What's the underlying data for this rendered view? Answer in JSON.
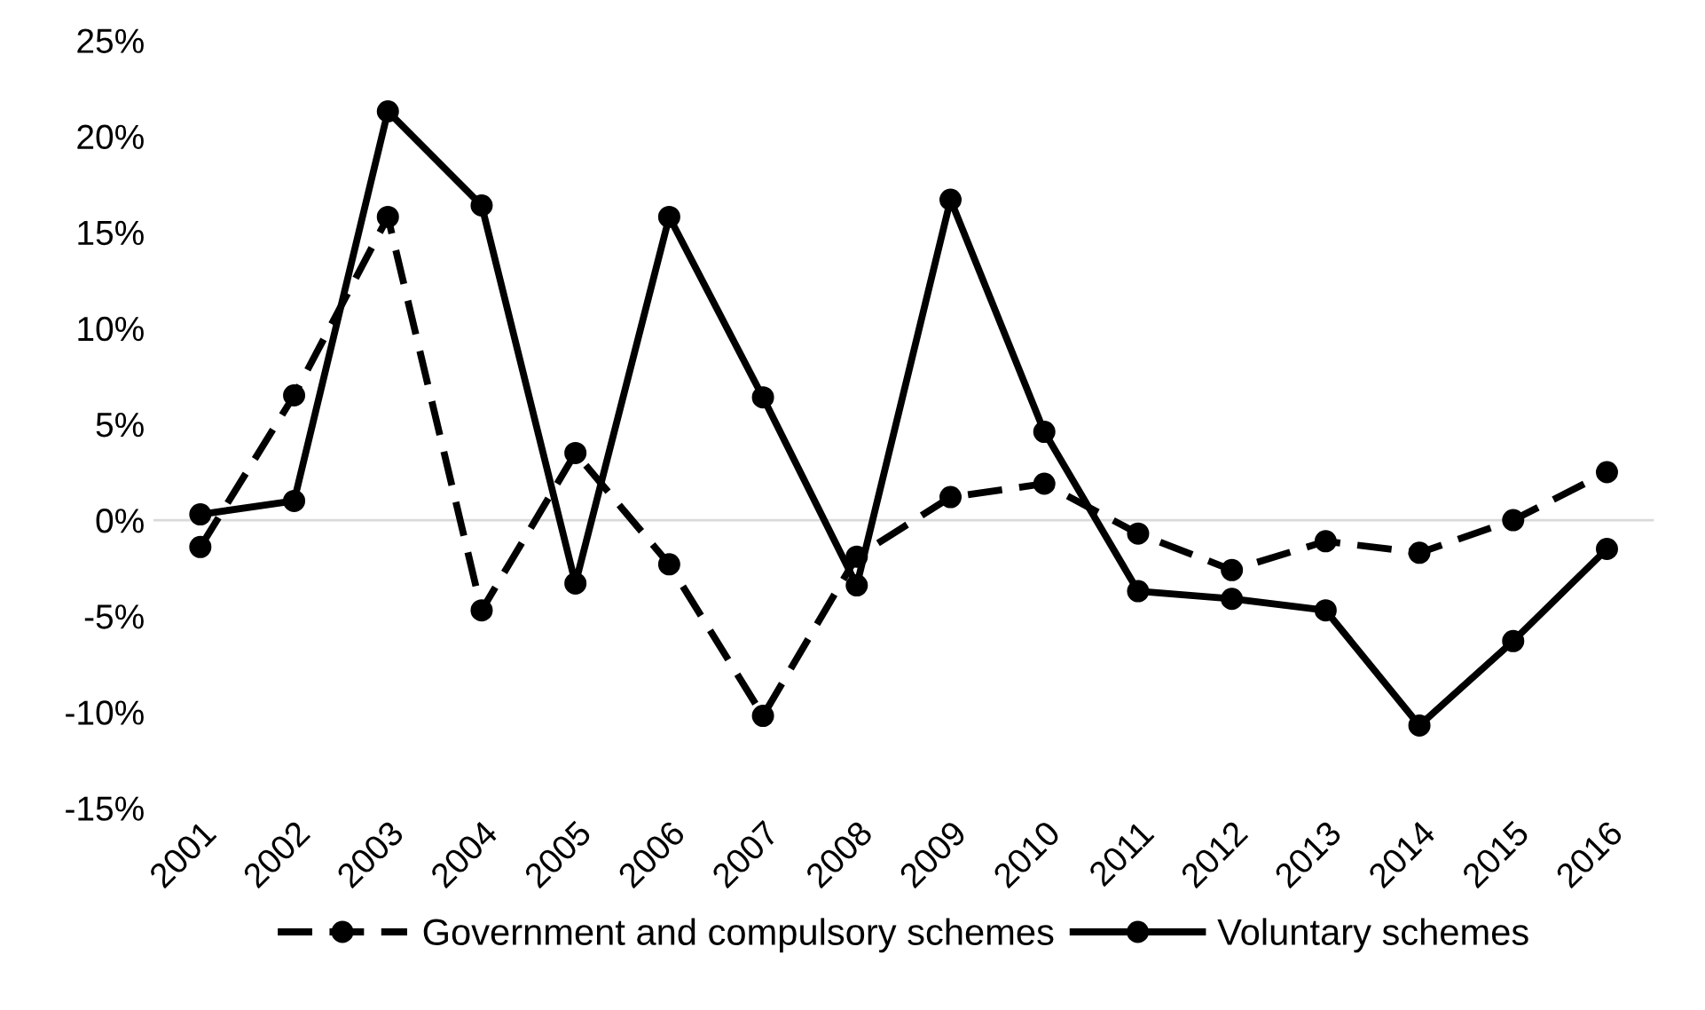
{
  "chart_data": {
    "type": "line",
    "categories": [
      "2001",
      "2002",
      "2003",
      "2004",
      "2005",
      "2006",
      "2007",
      "2008",
      "2009",
      "2010",
      "2011",
      "2012",
      "2013",
      "2014",
      "2015",
      "2016"
    ],
    "series": [
      {
        "name": "Government and compulsory schemes",
        "color": "#000000",
        "line_style": "dashed",
        "values": [
          -1.4,
          6.5,
          15.8,
          -4.7,
          3.5,
          -2.3,
          -10.2,
          -1.9,
          1.2,
          1.9,
          -0.7,
          -2.6,
          -1.1,
          -1.7,
          0.0,
          2.5
        ]
      },
      {
        "name": "Voluntary schemes",
        "color": "#000000",
        "line_style": "solid",
        "values": [
          0.3,
          1.0,
          21.3,
          16.4,
          -3.3,
          15.8,
          6.4,
          -3.4,
          16.7,
          4.6,
          -3.7,
          -4.1,
          -4.7,
          -10.7,
          -6.3,
          -1.5
        ]
      }
    ],
    "marker": "circle",
    "ylim": [
      -15,
      25
    ],
    "yticks": [
      {
        "value": -15,
        "label": "-15%"
      },
      {
        "value": -10,
        "label": "-10%"
      },
      {
        "value": -5,
        "label": "-5%"
      },
      {
        "value": 0,
        "label": "0%"
      },
      {
        "value": 5,
        "label": "5%"
      },
      {
        "value": 10,
        "label": "10%"
      },
      {
        "value": 15,
        "label": "15%"
      },
      {
        "value": 20,
        "label": "20%"
      },
      {
        "value": 25,
        "label": "25%"
      }
    ],
    "grid": false,
    "ref_lines": [
      {
        "axis": "y",
        "value": 0,
        "color": "#d9d9d9"
      }
    ],
    "legend": "bottom"
  }
}
